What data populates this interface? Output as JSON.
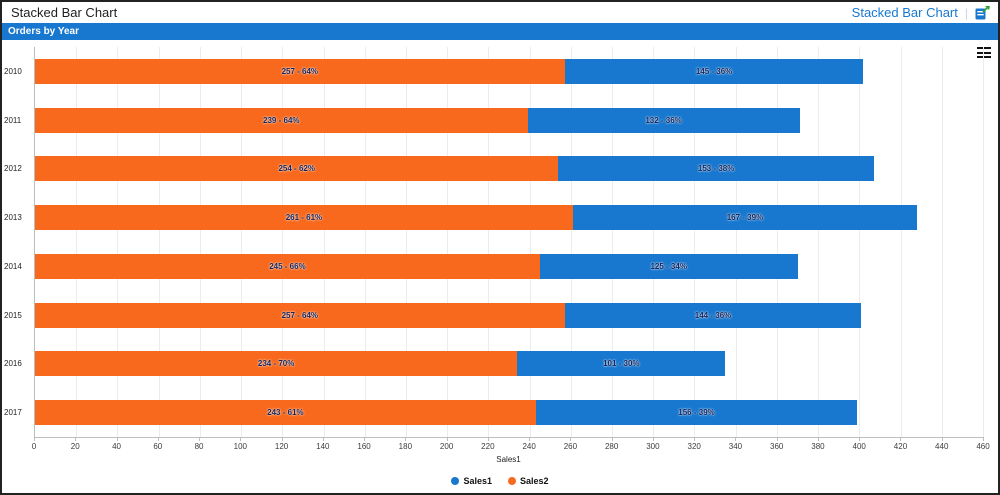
{
  "header": {
    "title": "Stacked Bar Chart",
    "link": "Stacked Bar Chart",
    "separator": "|"
  },
  "band": {
    "title": "Orders by Year"
  },
  "icons": {
    "open_report_icon": "report-popout",
    "chart_menu_icon": "hamburger-menu"
  },
  "colors": {
    "band_blue": "#1878cf",
    "series_blue": "#1878cf",
    "series_orange": "#f8691d",
    "link_blue": "#1878d0"
  },
  "chart_data": {
    "type": "bar",
    "orientation": "horizontal",
    "stacked": true,
    "title": "Orders by Year",
    "categories": [
      "2010",
      "2011",
      "2012",
      "2013",
      "2014",
      "2015",
      "2016",
      "2017"
    ],
    "series": [
      {
        "name": "Sales2",
        "color": "#f8691d",
        "values": [
          257,
          239,
          254,
          261,
          245,
          257,
          234,
          243
        ],
        "percents": [
          "64%",
          "64%",
          "62%",
          "61%",
          "66%",
          "64%",
          "70%",
          "61%"
        ]
      },
      {
        "name": "Sales1",
        "color": "#1878cf",
        "values": [
          145,
          132,
          153,
          167,
          125,
          144,
          101,
          156
        ],
        "percents": [
          "36%",
          "36%",
          "38%",
          "39%",
          "34%",
          "36%",
          "30%",
          "39%"
        ]
      }
    ],
    "label_format": "value - percent",
    "xlabel": "Sales1",
    "ylabel": "",
    "xlim": [
      0,
      460
    ],
    "x_ticks": [
      0,
      20,
      40,
      60,
      80,
      100,
      120,
      140,
      160,
      180,
      200,
      220,
      240,
      260,
      280,
      300,
      320,
      340,
      360,
      380,
      400,
      420,
      440,
      460
    ],
    "grid": "vertical",
    "legend_position": "bottom",
    "legend": [
      {
        "label": "Sales1",
        "color": "#1878cf"
      },
      {
        "label": "Sales2",
        "color": "#f8691d"
      }
    ]
  }
}
